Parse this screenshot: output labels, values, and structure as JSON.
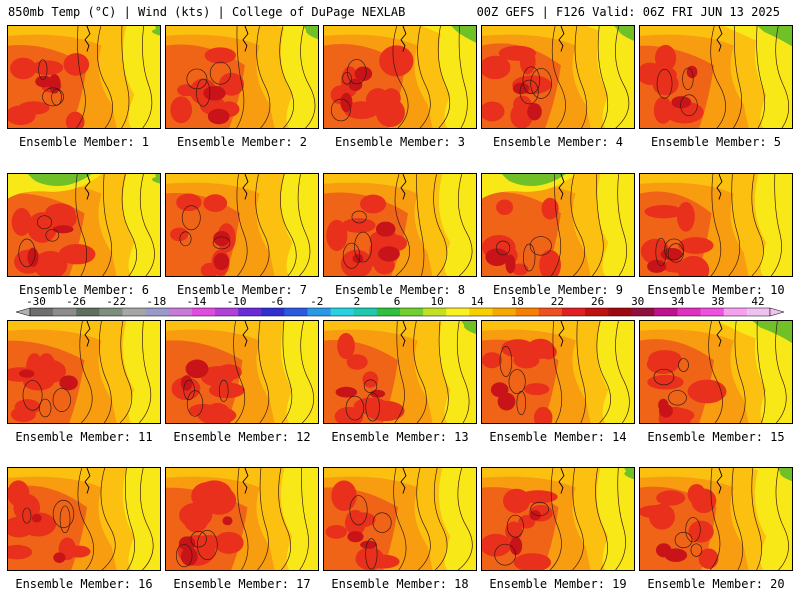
{
  "header": {
    "title_left": "850mb Temp (°C) | Wind (kts) | College of DuPage NEXLAB",
    "title_right": "00Z GEFS | F126 Valid: 06Z FRI JUN 13 2025"
  },
  "panels": [
    {
      "label": "Ensemble Member: 1"
    },
    {
      "label": "Ensemble Member: 2"
    },
    {
      "label": "Ensemble Member: 3"
    },
    {
      "label": "Ensemble Member: 4"
    },
    {
      "label": "Ensemble Member: 5"
    },
    {
      "label": "Ensemble Member: 6"
    },
    {
      "label": "Ensemble Member: 7"
    },
    {
      "label": "Ensemble Member: 8"
    },
    {
      "label": "Ensemble Member: 9"
    },
    {
      "label": "Ensemble Member: 10"
    },
    {
      "label": "Ensemble Member: 11"
    },
    {
      "label": "Ensemble Member: 12"
    },
    {
      "label": "Ensemble Member: 13"
    },
    {
      "label": "Ensemble Member: 14"
    },
    {
      "label": "Ensemble Member: 15"
    },
    {
      "label": "Ensemble Member: 16"
    },
    {
      "label": "Ensemble Member: 17"
    },
    {
      "label": "Ensemble Member: 18"
    },
    {
      "label": "Ensemble Member: 19"
    },
    {
      "label": "Ensemble Member: 20"
    }
  ],
  "colorbar": {
    "labels": [
      "-30",
      "-26",
      "-22",
      "-18",
      "-14",
      "-10",
      "-6",
      "-2",
      "2",
      "6",
      "10",
      "14",
      "18",
      "22",
      "26",
      "30",
      "34",
      "38",
      "42"
    ],
    "colors": [
      "#6e6e6e",
      "#8c8c8c",
      "#5f6f5f",
      "#7e8e7e",
      "#a6a6a6",
      "#9a9ac8",
      "#c87ad8",
      "#e04ce0",
      "#b040d8",
      "#6a2ad8",
      "#3030d0",
      "#2a5ae0",
      "#2a9ae8",
      "#28d0e0",
      "#20c8b0",
      "#30c040",
      "#70d030",
      "#c0e020",
      "#f8f020",
      "#f8d000",
      "#f8a800",
      "#f88000",
      "#f05020",
      "#e02020",
      "#c01010",
      "#a00810",
      "#901040",
      "#c01090",
      "#e030c0",
      "#f050e0",
      "#f8a0f0",
      "#f0c0f0"
    ]
  },
  "colors": {
    "warm_core": "#c81418",
    "hot": "#e8301c",
    "orange_red": "#f06418",
    "orange": "#f89c10",
    "light_orange": "#fcc010",
    "yellow": "#f8e818",
    "green": "#70c028",
    "contour": "#3a1a10"
  }
}
